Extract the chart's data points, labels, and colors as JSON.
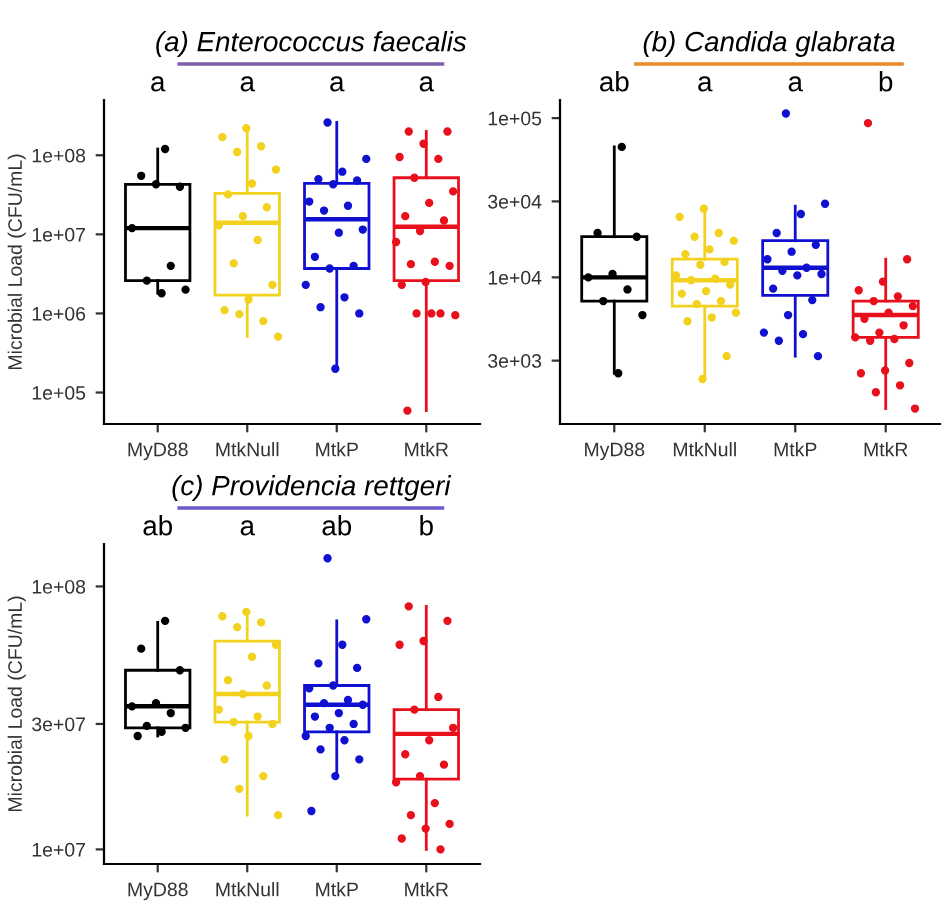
{
  "chart_data": [
    {
      "type": "box",
      "title": "(a) Enterococcus faecalis",
      "ylabel": "Microbial Load (CFU/mL)",
      "log": "y",
      "categories": [
        "MyD88",
        "MtkNull",
        "MtkP",
        "MtkR"
      ],
      "colors": [
        "#000000",
        "#f2d21f",
        "#1010d0",
        "#e8101c"
      ],
      "boxes": [
        {
          "low": 1800000.0,
          "q1": 2600000.0,
          "median": 12000000.0,
          "q3": 43000000.0,
          "high": 120000000.0
        },
        {
          "low": 510000.0,
          "q1": 1700000.0,
          "median": 14000000.0,
          "q3": 33000000.0,
          "high": 220000000.0
        },
        {
          "low": 200000.0,
          "q1": 3700000.0,
          "median": 15500000.0,
          "q3": 44000000.0,
          "high": 260000000.0
        },
        {
          "low": 59000.0,
          "q1": 2600000.0,
          "median": 12500000.0,
          "q3": 52000000.0,
          "high": 200000000.0
        }
      ],
      "series": [
        {
          "type": "scatter",
          "color": "#000000",
          "x": [
            "MyD88",
            "MyD88",
            "MyD88",
            "MyD88",
            "MyD88",
            "MyD88",
            "MyD88",
            "MyD88",
            "MyD88"
          ],
          "values": [
            120000000.0,
            55000000.0,
            40000000.0,
            43000000.0,
            12000000.0,
            4000000.0,
            2600000.0,
            2000000.0,
            1800000.0
          ]
        },
        {
          "type": "scatter",
          "color": "#f2d21f",
          "x": [
            "MtkNull",
            "MtkNull",
            "MtkNull",
            "MtkNull",
            "MtkNull",
            "MtkNull",
            "MtkNull",
            "MtkNull",
            "MtkNull",
            "MtkNull",
            "MtkNull",
            "MtkNull",
            "MtkNull",
            "MtkNull",
            "MtkNull",
            "MtkNull",
            "MtkNull",
            "MtkNull"
          ],
          "values": [
            220000000.0,
            170000000.0,
            130000000.0,
            110000000.0,
            66000000.0,
            44000000.0,
            32000000.0,
            22000000.0,
            17000000.0,
            13000000.0,
            8500000.0,
            4300000.0,
            2300000.0,
            1500000.0,
            1100000.0,
            800000.0,
            980000.0,
            510000.0
          ]
        },
        {
          "type": "scatter",
          "color": "#1010d0",
          "x": [
            "MtkP",
            "MtkP",
            "MtkP",
            "MtkP",
            "MtkP",
            "MtkP",
            "MtkP",
            "MtkP",
            "MtkP",
            "MtkP",
            "MtkP",
            "MtkP",
            "MtkP",
            "MtkP",
            "MtkP",
            "MtkP",
            "MtkP",
            "MtkP",
            "MtkP"
          ],
          "values": [
            260000000.0,
            90000000.0,
            62000000.0,
            50000000.0,
            48000000.0,
            43000000.0,
            26000000.0,
            23000000.0,
            20000000.0,
            11500000.0,
            10500000.0,
            5200000.0,
            4000000.0,
            3700000.0,
            2300000.0,
            1600000.0,
            1200000.0,
            1000000.0,
            200000.0
          ]
        },
        {
          "type": "scatter",
          "color": "#e8101c",
          "x": [
            "MtkR",
            "MtkR",
            "MtkR",
            "MtkR",
            "MtkR",
            "MtkR",
            "MtkR",
            "MtkR",
            "MtkR",
            "MtkR",
            "MtkR",
            "MtkR",
            "MtkR",
            "MtkR",
            "MtkR",
            "MtkR",
            "MtkR",
            "MtkR",
            "MtkR",
            "MtkR",
            "MtkR",
            "MtkR"
          ],
          "values": [
            200000000.0,
            200000000.0,
            140000000.0,
            95000000.0,
            90000000.0,
            52000000.0,
            35000000.0,
            25000000.0,
            17000000.0,
            15000000.0,
            11000000.0,
            8000000.0,
            4500000.0,
            4200000.0,
            4000000.0,
            2500000.0,
            2300000.0,
            1000000.0,
            1000000.0,
            950000.0,
            1000000.0,
            59000.0
          ]
        }
      ],
      "ylim": [
        40000.0,
        500000000.0
      ],
      "yticks": [
        {
          "value": 100000.0,
          "label": "1e+05"
        },
        {
          "value": 1000000.0,
          "label": "1e+06"
        },
        {
          "value": 10000000.0,
          "label": "1e+07"
        },
        {
          "value": 100000000.0,
          "label": "1e+08"
        }
      ],
      "annotations": [
        "a",
        "a",
        "a",
        "a"
      ],
      "grid": false,
      "legend": false
    },
    {
      "type": "box",
      "title": "(b) Candida glabrata",
      "log": "y",
      "categories": [
        "MyD88",
        "MtkNull",
        "MtkP",
        "MtkR"
      ],
      "colors": [
        "#000000",
        "#f2d21f",
        "#1010d0",
        "#e8101c"
      ],
      "boxes": [
        {
          "low": 2500.0,
          "q1": 7100.0,
          "median": 10000.0,
          "q3": 18000.0,
          "high": 66000.0
        },
        {
          "low": 2300.0,
          "q1": 6600.0,
          "median": 9600.0,
          "q3": 13000.0,
          "high": 27000.0
        },
        {
          "low": 3200.0,
          "q1": 7700.0,
          "median": 11500.0,
          "q3": 17000.0,
          "high": 28000.0
        },
        {
          "low": 1500.0,
          "q1": 4200.0,
          "median": 5800.0,
          "q3": 7100.0,
          "high": 13000.0
        }
      ],
      "series": [
        {
          "type": "scatter",
          "color": "#000000",
          "x": [
            "MyD88",
            "MyD88",
            "MyD88",
            "MyD88",
            "MyD88",
            "MyD88",
            "MyD88",
            "MyD88",
            "MyD88"
          ],
          "values": [
            66000.0,
            19000.0,
            18000.0,
            10500.0,
            10000.0,
            8400.0,
            7100.0,
            5800.0,
            2500.0
          ]
        },
        {
          "type": "scatter",
          "color": "#f2d21f",
          "x": [
            "MtkNull",
            "MtkNull",
            "MtkNull",
            "MtkNull",
            "MtkNull",
            "MtkNull",
            "MtkNull",
            "MtkNull",
            "MtkNull",
            "MtkNull",
            "MtkNull",
            "MtkNull",
            "MtkNull",
            "MtkNull",
            "MtkNull",
            "MtkNull",
            "MtkNull",
            "MtkNull",
            "MtkNull",
            "MtkNull",
            "MtkNull",
            "MtkNull"
          ],
          "values": [
            27000.0,
            24000.0,
            19000.0,
            18000.0,
            17000.0,
            15000.0,
            14000.0,
            12500.0,
            12000.0,
            10300.0,
            9800.0,
            9600.0,
            9000.0,
            8200.0,
            7900.0,
            7100.0,
            6800.0,
            6000.0,
            5600.0,
            5300.0,
            3200.0,
            2300.0
          ]
        },
        {
          "type": "scatter",
          "color": "#1010d0",
          "x": [
            "MtkP",
            "MtkP",
            "MtkP",
            "MtkP",
            "MtkP",
            "MtkP",
            "MtkP",
            "MtkP",
            "MtkP",
            "MtkP",
            "MtkP",
            "MtkP",
            "MtkP",
            "MtkP",
            "MtkP",
            "MtkP",
            "MtkP",
            "MtkP"
          ],
          "values": [
            107000.0,
            29000.0,
            25000.0,
            19000.0,
            16000.0,
            14500.0,
            13000.0,
            11500.0,
            11000.0,
            10500.0,
            10300.0,
            8500.0,
            7200.0,
            5800.0,
            4500.0,
            4400.0,
            4000.0,
            3200.0
          ]
        },
        {
          "type": "scatter",
          "color": "#e8101c",
          "x": [
            "MtkR",
            "MtkR",
            "MtkR",
            "MtkR",
            "MtkR",
            "MtkR",
            "MtkR",
            "MtkR",
            "MtkR",
            "MtkR",
            "MtkR",
            "MtkR",
            "MtkR",
            "MtkR",
            "MtkR",
            "MtkR",
            "MtkR",
            "MtkR",
            "MtkR",
            "MtkR"
          ],
          "values": [
            93000.0,
            13000.0,
            9400.0,
            8300.0,
            7600.0,
            7100.0,
            6600.0,
            6000.0,
            5500.0,
            5000.0,
            4500.0,
            4200.0,
            4100.0,
            4000.0,
            2900.0,
            2600.0,
            2500.0,
            2100.0,
            1900.0,
            1500.0
          ]
        }
      ],
      "ylim": [
        1200.0,
        130000.0
      ],
      "yticks": [
        {
          "value": 3000,
          "label": "3e+03"
        },
        {
          "value": 10000,
          "label": "1e+04"
        },
        {
          "value": 30000,
          "label": "3e+04"
        },
        {
          "value": 100000,
          "label": "1e+05"
        }
      ],
      "annotations": [
        "ab",
        "a",
        "a",
        "b"
      ],
      "grid": false,
      "legend": false
    },
    {
      "type": "box",
      "title": "(c) Providencia rettgeri",
      "ylabel": "Microbial Load (CFU/mL)",
      "log": "y",
      "categories": [
        "MyD88",
        "MtkNull",
        "MtkP",
        "MtkR"
      ],
      "colors": [
        "#000000",
        "#f2d21f",
        "#1010d0",
        "#e8101c"
      ],
      "boxes": [
        {
          "low": 27000000.0,
          "q1": 29000000.0,
          "median": 35000000.0,
          "q3": 48000000.0,
          "high": 73000000.0
        },
        {
          "low": 13500000.0,
          "q1": 30500000.0,
          "median": 39000000.0,
          "q3": 62000000.0,
          "high": 80000000.0
        },
        {
          "low": 19000000.0,
          "q1": 28000000.0,
          "median": 35500000.0,
          "q3": 42000000.0,
          "high": 74000000.0
        },
        {
          "low": 10000000.0,
          "q1": 18500000.0,
          "median": 27500000.0,
          "q3": 34000000.0,
          "high": 84000000.0
        }
      ],
      "series": [
        {
          "type": "scatter",
          "color": "#000000",
          "x": [
            "MyD88",
            "MyD88",
            "MyD88",
            "MyD88",
            "MyD88",
            "MyD88",
            "MyD88",
            "MyD88",
            "MyD88",
            "MyD88"
          ],
          "values": [
            74000000.0,
            58000000.0,
            48000000.0,
            36000000.0,
            35000000.0,
            33000000.0,
            29500000.0,
            29000000.0,
            28000000.0,
            27000000.0
          ]
        },
        {
          "type": "scatter",
          "color": "#f2d21f",
          "x": [
            "MtkNull",
            "MtkNull",
            "MtkNull",
            "MtkNull",
            "MtkNull",
            "MtkNull",
            "MtkNull",
            "MtkNull",
            "MtkNull",
            "MtkNull",
            "MtkNull",
            "MtkNull",
            "MtkNull",
            "MtkNull",
            "MtkNull",
            "MtkNull",
            "MtkNull",
            "MtkNull"
          ],
          "values": [
            80000000.0,
            77000000.0,
            73000000.0,
            70000000.0,
            60000000.0,
            54000000.0,
            44000000.0,
            42000000.0,
            39000000.0,
            34000000.0,
            32000000.0,
            30500000.0,
            30000000.0,
            27000000.0,
            22000000.0,
            19000000.0,
            17000000.0,
            13500000.0
          ]
        },
        {
          "type": "scatter",
          "color": "#1010d0",
          "x": [
            "MtkP",
            "MtkP",
            "MtkP",
            "MtkP",
            "MtkP",
            "MtkP",
            "MtkP",
            "MtkP",
            "MtkP",
            "MtkP",
            "MtkP",
            "MtkP",
            "MtkP",
            "MtkP",
            "MtkP",
            "MtkP",
            "MtkP",
            "MtkP",
            "MtkP",
            "MtkP"
          ],
          "values": [
            128000000.0,
            75000000.0,
            60000000.0,
            51000000.0,
            49000000.0,
            42000000.0,
            41000000.0,
            37000000.0,
            36000000.0,
            35500000.0,
            33000000.0,
            32000000.0,
            30000000.0,
            29000000.0,
            27000000.0,
            26000000.0,
            24000000.0,
            22000000.0,
            19000000.0,
            14000000.0
          ]
        },
        {
          "type": "scatter",
          "color": "#e8101c",
          "x": [
            "MtkR",
            "MtkR",
            "MtkR",
            "MtkR",
            "MtkR",
            "MtkR",
            "MtkR",
            "MtkR",
            "MtkR",
            "MtkR",
            "MtkR",
            "MtkR",
            "MtkR",
            "MtkR",
            "MtkR",
            "MtkR",
            "MtkR",
            "MtkR"
          ],
          "values": [
            84000000.0,
            74000000.0,
            62000000.0,
            60000000.0,
            38000000.0,
            34000000.0,
            29000000.0,
            26000000.0,
            23000000.0,
            21000000.0,
            19000000.0,
            18000000.0,
            15000000.0,
            13500000.0,
            12500000.0,
            12000000.0,
            11000000.0,
            10000000.0
          ]
        }
      ],
      "ylim": [
        8800000.0,
        145000000.0
      ],
      "yticks": [
        {
          "value": 10000000.0,
          "label": "1e+07"
        },
        {
          "value": 30000000.0,
          "label": "3e+07"
        },
        {
          "value": 100000000.0,
          "label": "1e+08"
        }
      ],
      "annotations": [
        "ab",
        "a",
        "ab",
        "b"
      ],
      "grid": false,
      "legend": false
    }
  ]
}
